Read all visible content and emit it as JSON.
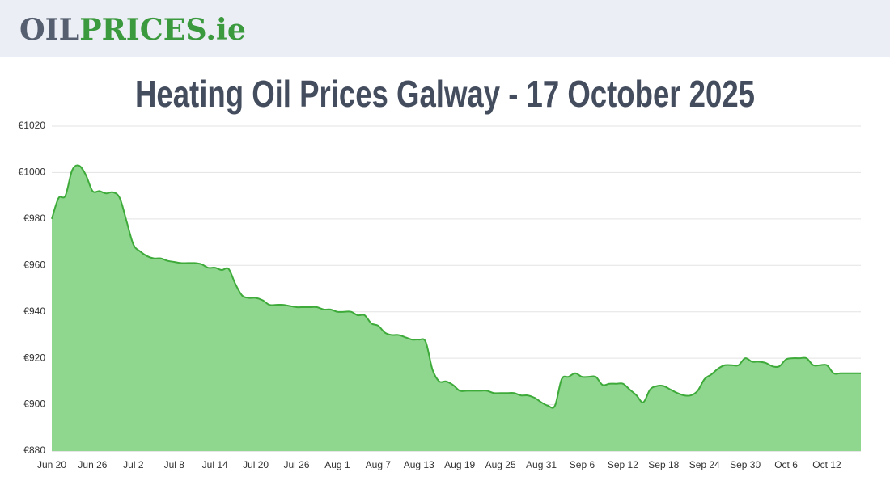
{
  "header": {
    "logo_parts": [
      "OIL",
      "PRICES.ie"
    ]
  },
  "chart_data": {
    "type": "area",
    "title": "Heating Oil Prices Galway - 17 October 2025",
    "color": "#3daa3a",
    "fill": "#8fd68e",
    "grid": true,
    "ylim": [
      880,
      1020
    ],
    "yticks": [
      {
        "value": 880,
        "label": "€880"
      },
      {
        "value": 900,
        "label": "€900"
      },
      {
        "value": 920,
        "label": "€920"
      },
      {
        "value": 940,
        "label": "€940"
      },
      {
        "value": 960,
        "label": "€960"
      },
      {
        "value": 980,
        "label": "€980"
      },
      {
        "value": 1000,
        "label": "€1000"
      },
      {
        "value": 1020,
        "label": "€1020"
      }
    ],
    "categories": [
      "Jun 20",
      null,
      null,
      null,
      null,
      null,
      "Jun 26",
      null,
      null,
      null,
      null,
      null,
      "Jul 2",
      null,
      null,
      null,
      null,
      null,
      "Jul 8",
      null,
      null,
      null,
      null,
      null,
      "Jul 14",
      null,
      null,
      null,
      null,
      null,
      "Jul 20",
      null,
      null,
      null,
      null,
      null,
      "Jul 26",
      null,
      null,
      null,
      null,
      null,
      "Aug 1",
      null,
      null,
      null,
      null,
      null,
      "Aug 7",
      null,
      null,
      null,
      null,
      null,
      "Aug 13",
      null,
      null,
      null,
      null,
      null,
      "Aug 19",
      null,
      null,
      null,
      null,
      null,
      "Aug 25",
      null,
      null,
      null,
      null,
      null,
      "Aug 31",
      null,
      null,
      null,
      null,
      null,
      "Sep 6",
      null,
      null,
      null,
      null,
      null,
      "Sep 12",
      null,
      null,
      null,
      null,
      null,
      "Sep 18",
      null,
      null,
      null,
      null,
      null,
      "Sep 24",
      null,
      null,
      null,
      null,
      null,
      "Sep 30",
      null,
      null,
      null,
      null,
      null,
      "Oct 6",
      null,
      null,
      null,
      null,
      null,
      "Oct 12",
      null,
      null,
      null,
      null,
      null
    ],
    "values": [
      980,
      989,
      990,
      1001,
      1003,
      999,
      992,
      992,
      991,
      991.5,
      989,
      979,
      969,
      966,
      964,
      963,
      963,
      962,
      961.5,
      961,
      961,
      961,
      960.5,
      959,
      959,
      958,
      958.5,
      952,
      947,
      946,
      946,
      945,
      943,
      943,
      943,
      942.5,
      942,
      942,
      942,
      942,
      941,
      941,
      940,
      940,
      940,
      938.5,
      938.5,
      935,
      934,
      931,
      930,
      930,
      929,
      928,
      928,
      927,
      915,
      910,
      910,
      908.5,
      906,
      906,
      906,
      906,
      906,
      905,
      905,
      905,
      905,
      904,
      904,
      903,
      901,
      899.5,
      899.5,
      911,
      912,
      913.5,
      912,
      912,
      912,
      908.5,
      909,
      909,
      909,
      906.5,
      904,
      901,
      906.5,
      908,
      908,
      906.5,
      905,
      904,
      904,
      906,
      911,
      913,
      915.5,
      917,
      917,
      917,
      920,
      918.5,
      918.5,
      918,
      916.5,
      916.5,
      919.5,
      920,
      920,
      920,
      917,
      917,
      917,
      913.5,
      913.5,
      913.5,
      913.5,
      913.5
    ]
  }
}
